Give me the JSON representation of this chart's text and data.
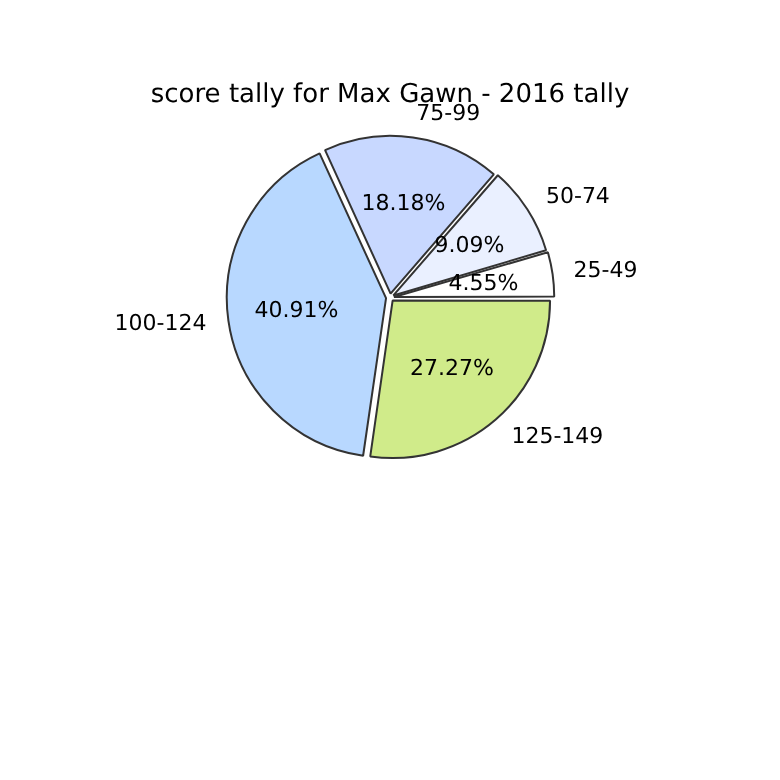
{
  "chart_data": {
    "type": "pie",
    "title": "score tally for Max Gawn - 2016 tally",
    "categories": [
      "125-149",
      "100-124",
      "75-99",
      "50-74",
      "25-49"
    ],
    "values": [
      27.27,
      40.91,
      18.18,
      9.09,
      4.55
    ],
    "colors": [
      "#d0eb8a",
      "#b8d8ff",
      "#c8d8ff",
      "#eaf0ff",
      "#ffffff"
    ],
    "value_labels": [
      "27.27%",
      "40.91%",
      "18.18%",
      "9.09%",
      "4.55%"
    ],
    "legend": false
  }
}
